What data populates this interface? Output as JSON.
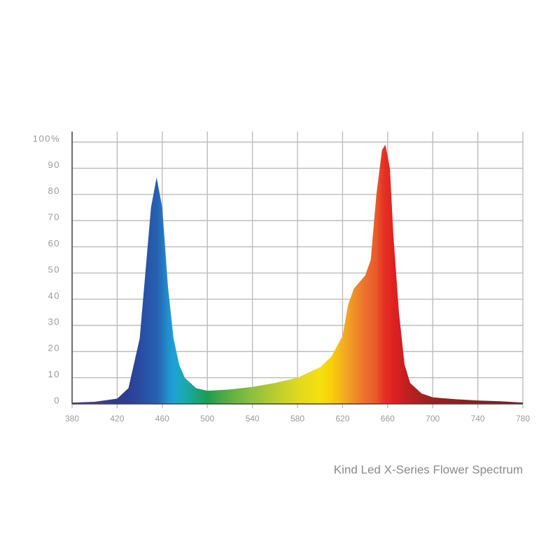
{
  "chart_data": {
    "type": "area",
    "title": "Kind Led X-Series Flower Spectrum",
    "x": [
      380,
      400,
      420,
      430,
      440,
      445,
      450,
      455,
      460,
      465,
      470,
      475,
      480,
      490,
      500,
      520,
      540,
      560,
      580,
      600,
      610,
      620,
      625,
      630,
      640,
      645,
      650,
      655,
      658,
      662,
      665,
      670,
      675,
      680,
      690,
      700,
      720,
      740,
      760,
      780
    ],
    "values": [
      0.5,
      0.8,
      2,
      6,
      25,
      50,
      75,
      86.5,
      75,
      45,
      25,
      15,
      10,
      6,
      5,
      5.5,
      6.5,
      8,
      10,
      14,
      18,
      26,
      38,
      44,
      49,
      55,
      80,
      97,
      99,
      90,
      65,
      35,
      15,
      8,
      4,
      2.5,
      1.8,
      1.3,
      1,
      0.5
    ],
    "colors": [
      "#5a3b8a",
      "#4a3b8e",
      "#2d3b8f",
      "#2c3f95",
      "#2a4aa0",
      "#2853a6",
      "#265aab",
      "#2660b0",
      "#2475bd",
      "#2190cc",
      "#1fa0d8",
      "#1ca6c4",
      "#1aa8b0",
      "#1aa480",
      "#1a9e50",
      "#5fb040",
      "#8dc040",
      "#b8cc30",
      "#e0d820",
      "#f5e010",
      "#f8d008",
      "#f5b020",
      "#f2a024",
      "#f09028",
      "#ec7030",
      "#ea652c",
      "#e85a28",
      "#e63a26",
      "#e52d25",
      "#e22822",
      "#e02020",
      "#d42020",
      "#c52020",
      "#b82020",
      "#a82020",
      "#9a2020",
      "#922020",
      "#8a2020",
      "#7e2020",
      "#702020"
    ],
    "xlim": [
      380,
      780
    ],
    "ylim": [
      0,
      104
    ],
    "xticks": [
      380,
      420,
      460,
      500,
      540,
      580,
      620,
      660,
      700,
      740,
      780
    ],
    "yticks": [
      0,
      10,
      20,
      30,
      40,
      50,
      60,
      70,
      80,
      90,
      {
        "value": 100,
        "label": "100%"
      }
    ],
    "grid": true
  }
}
